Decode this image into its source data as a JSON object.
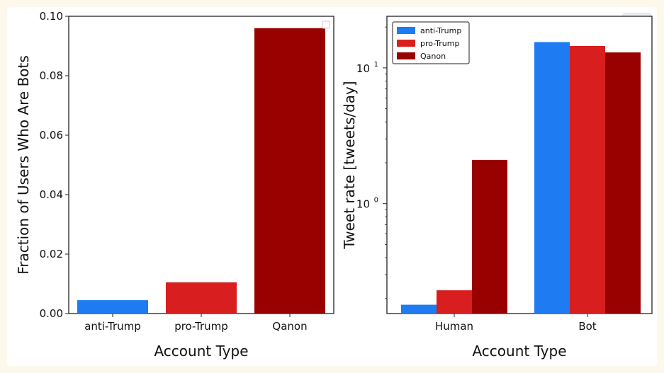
{
  "chart_data": [
    {
      "type": "bar",
      "categories": [
        "anti-Trump",
        "pro-Trump",
        "Qanon"
      ],
      "values": [
        0.0045,
        0.0105,
        0.096
      ],
      "colors": [
        "#1f7bf2",
        "#d81e1e",
        "#990000"
      ],
      "title": "",
      "xlabel": "Account Type",
      "ylabel": "Fraction of Users Who Are Bots",
      "ylim": [
        0,
        0.1
      ],
      "yticks": [
        0.0,
        0.02,
        0.04,
        0.06,
        0.08,
        0.1
      ],
      "ytick_labels": [
        "0.00",
        "0.02",
        "0.04",
        "0.06",
        "0.08",
        "0.10"
      ],
      "legend": "top-right, empty"
    },
    {
      "type": "bar",
      "scale": "log",
      "categories": [
        "Human",
        "Bot"
      ],
      "series": [
        {
          "name": "anti-Trump",
          "color": "#1f7bf2",
          "values": [
            0.18,
            15.5
          ]
        },
        {
          "name": "pro-Trump",
          "color": "#d81e1e",
          "values": [
            0.23,
            14.5
          ]
        },
        {
          "name": "Qanon",
          "color": "#990000",
          "values": [
            2.1,
            13.0
          ]
        }
      ],
      "title": "",
      "xlabel": "Account Type",
      "ylabel": "Tweet rate [tweets/day]",
      "ylim": [
        0.155,
        24
      ],
      "yticks": [
        1,
        10
      ],
      "ytick_labels": [
        {
          "base": "10",
          "exp": "0"
        },
        {
          "base": "10",
          "exp": "1"
        }
      ],
      "legend": "top-left"
    }
  ]
}
